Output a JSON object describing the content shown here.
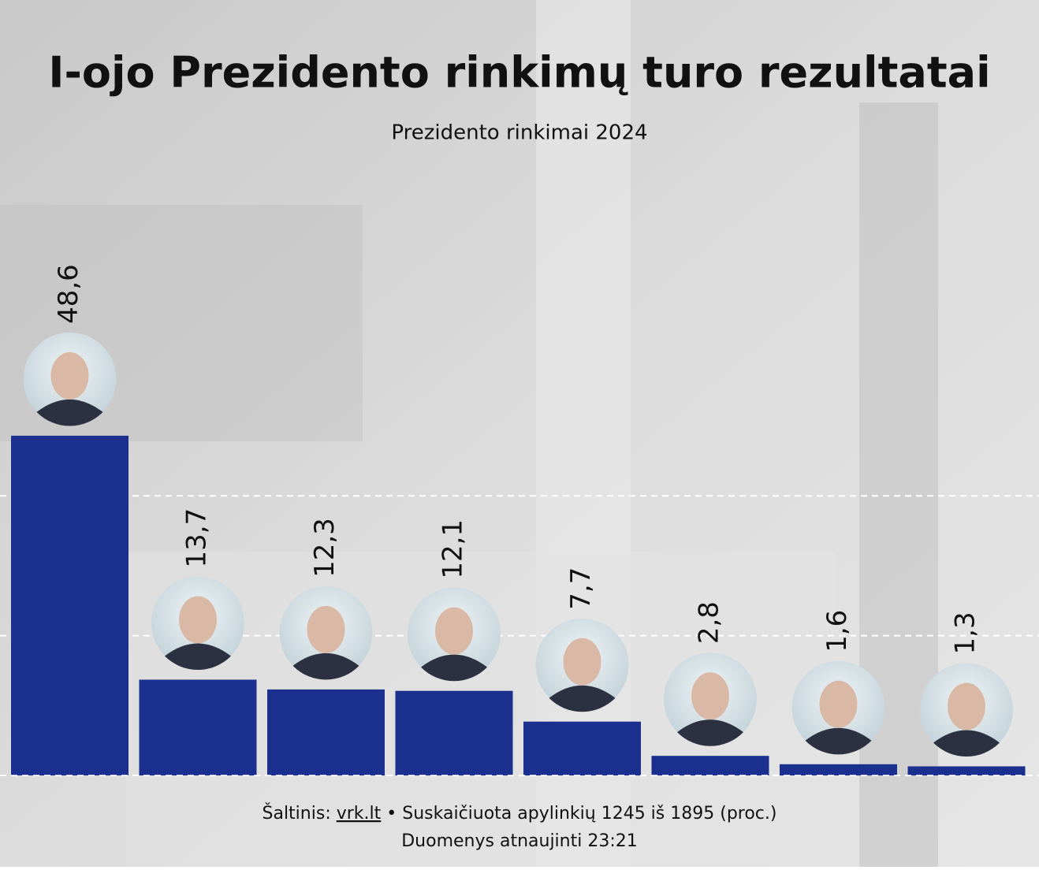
{
  "chart_data": {
    "type": "bar",
    "title": "I-ojo Prezidento rinkimų turo rezultatai",
    "subtitle": "Prezidento rinkimai 2024",
    "categories": [
      null,
      null,
      null,
      null,
      null,
      null,
      null,
      null
    ],
    "values": [
      48.6,
      13.7,
      12.3,
      12.1,
      7.7,
      2.8,
      1.6,
      1.3
    ],
    "value_labels": [
      "48,6",
      "13,7",
      "12,3",
      "12,1",
      "7,7",
      "2,8",
      "1,6",
      "1,3"
    ],
    "color": "#1b2f8e",
    "ylim": [
      0,
      50
    ],
    "yticks": [
      0,
      20,
      40
    ],
    "grid": true,
    "source_label": "Šaltinis:",
    "source": "vrk.lt",
    "note": "• Suskaičiuota apylinkių 1245 iš 1895 (proc.)",
    "updated": "Duomenys atnaujinti 23:21"
  }
}
